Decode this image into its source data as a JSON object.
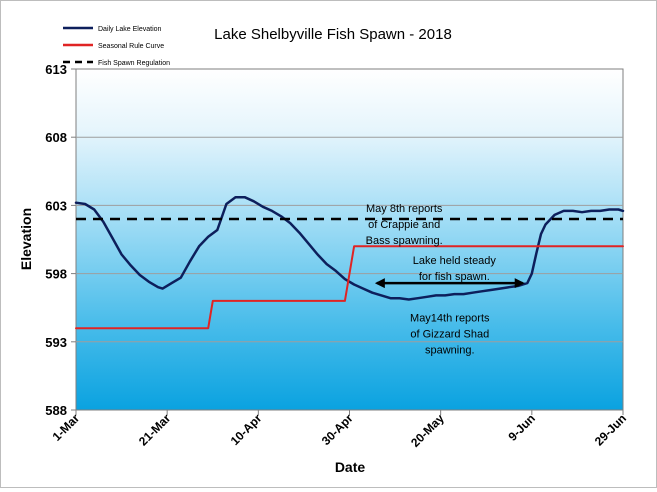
{
  "chart_data": {
    "type": "line",
    "title": "Lake Shelbyville Fish Spawn - 2018",
    "xlabel": "Date",
    "ylabel": "Elevation",
    "ylim": [
      588,
      613
    ],
    "yticks": [
      588,
      593,
      598,
      603,
      608,
      613
    ],
    "xlim": [
      "2018-03-01",
      "2018-06-29"
    ],
    "xticks": [
      {
        "date": "2018-03-01",
        "label": "1-Mar"
      },
      {
        "date": "2018-03-21",
        "label": "21-Mar"
      },
      {
        "date": "2018-04-10",
        "label": "10-Apr"
      },
      {
        "date": "2018-04-30",
        "label": "30-Apr"
      },
      {
        "date": "2018-05-20",
        "label": "20-May"
      },
      {
        "date": "2018-06-09",
        "label": "9-Jun"
      },
      {
        "date": "2018-06-29",
        "label": "29-Jun"
      }
    ],
    "grid": true,
    "legend_position": "top-left",
    "series": [
      {
        "name": "Daily Lake Elevation",
        "color": "#0d1f5c",
        "style": "solid",
        "points": [
          [
            "2018-03-01",
            603.2
          ],
          [
            "2018-03-03",
            603.1
          ],
          [
            "2018-03-05",
            602.7
          ],
          [
            "2018-03-07",
            601.8
          ],
          [
            "2018-03-09",
            600.6
          ],
          [
            "2018-03-11",
            599.4
          ],
          [
            "2018-03-13",
            598.6
          ],
          [
            "2018-03-15",
            597.9
          ],
          [
            "2018-03-17",
            597.4
          ],
          [
            "2018-03-19",
            597.0
          ],
          [
            "2018-03-20",
            596.9
          ],
          [
            "2018-03-22",
            597.3
          ],
          [
            "2018-03-24",
            597.7
          ],
          [
            "2018-03-26",
            598.9
          ],
          [
            "2018-03-28",
            600.0
          ],
          [
            "2018-03-30",
            600.7
          ],
          [
            "2018-04-01",
            601.2
          ],
          [
            "2018-04-03",
            603.1
          ],
          [
            "2018-04-05",
            603.6
          ],
          [
            "2018-04-07",
            603.6
          ],
          [
            "2018-04-09",
            603.3
          ],
          [
            "2018-04-11",
            602.9
          ],
          [
            "2018-04-13",
            602.6
          ],
          [
            "2018-04-15",
            602.2
          ],
          [
            "2018-04-17",
            601.7
          ],
          [
            "2018-04-19",
            601.0
          ],
          [
            "2018-04-21",
            600.2
          ],
          [
            "2018-04-23",
            599.4
          ],
          [
            "2018-04-25",
            598.7
          ],
          [
            "2018-04-27",
            598.2
          ],
          [
            "2018-04-29",
            597.6
          ],
          [
            "2018-05-01",
            597.2
          ],
          [
            "2018-05-03",
            596.9
          ],
          [
            "2018-05-05",
            596.6
          ],
          [
            "2018-05-07",
            596.4
          ],
          [
            "2018-05-09",
            596.2
          ],
          [
            "2018-05-11",
            596.2
          ],
          [
            "2018-05-13",
            596.1
          ],
          [
            "2018-05-15",
            596.2
          ],
          [
            "2018-05-17",
            596.3
          ],
          [
            "2018-05-19",
            596.4
          ],
          [
            "2018-05-21",
            596.4
          ],
          [
            "2018-05-23",
            596.5
          ],
          [
            "2018-05-25",
            596.5
          ],
          [
            "2018-05-27",
            596.6
          ],
          [
            "2018-05-29",
            596.7
          ],
          [
            "2018-05-31",
            596.8
          ],
          [
            "2018-06-02",
            596.9
          ],
          [
            "2018-06-04",
            597.0
          ],
          [
            "2018-06-06",
            597.1
          ],
          [
            "2018-06-08",
            597.3
          ],
          [
            "2018-06-09",
            598.0
          ],
          [
            "2018-06-10",
            599.5
          ],
          [
            "2018-06-11",
            600.9
          ],
          [
            "2018-06-12",
            601.6
          ],
          [
            "2018-06-14",
            602.3
          ],
          [
            "2018-06-16",
            602.6
          ],
          [
            "2018-06-18",
            602.6
          ],
          [
            "2018-06-20",
            602.5
          ],
          [
            "2018-06-22",
            602.6
          ],
          [
            "2018-06-24",
            602.6
          ],
          [
            "2018-06-26",
            602.7
          ],
          [
            "2018-06-28",
            602.7
          ],
          [
            "2018-06-29",
            602.6
          ]
        ]
      },
      {
        "name": "Seasonal Rule Curve",
        "color": "#e02424",
        "style": "solid",
        "points": [
          [
            "2018-03-01",
            594.0
          ],
          [
            "2018-03-30",
            594.0
          ],
          [
            "2018-03-31",
            596.0
          ],
          [
            "2018-04-29",
            596.0
          ],
          [
            "2018-05-01",
            600.0
          ],
          [
            "2018-06-29",
            600.0
          ]
        ]
      },
      {
        "name": "Fish Spawn Regulation",
        "color": "#000000",
        "style": "dashed",
        "points": [
          [
            "2018-03-01",
            602.0
          ],
          [
            "2018-06-29",
            602.0
          ]
        ]
      }
    ],
    "annotations": [
      {
        "lines": [
          "May 8th reports",
          "of Crappie and",
          "Bass spawning."
        ],
        "date": "2018-05-12",
        "value": 602.5
      },
      {
        "lines": [
          "Lake held steady",
          "for fish spawn."
        ],
        "date": "2018-05-23",
        "value": 598.7
      },
      {
        "lines": [
          "May14th reports",
          "of Gizzard Shad",
          "spawning."
        ],
        "date": "2018-05-22",
        "value": 594.5
      }
    ],
    "range_arrow": {
      "start": "2018-05-06",
      "end": "2018-06-07",
      "value": 597.3
    }
  }
}
